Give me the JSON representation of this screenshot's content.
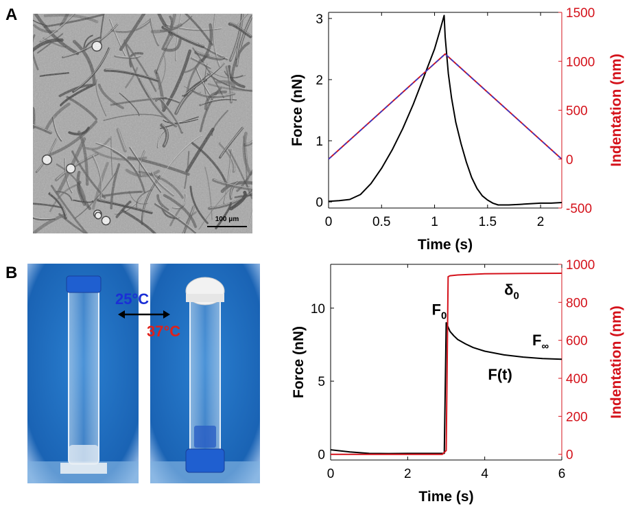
{
  "panel_a": {
    "letter": "A",
    "micrograph": {
      "scale_bar_text": "100 μm"
    }
  },
  "panel_b": {
    "letter": "B",
    "photo": {
      "left_temperature": "25°C",
      "right_temperature": "37°C",
      "left_temperature_color": "#1b2fd6",
      "right_temperature_color": "#e0201a",
      "background_color": "#1e6fc0",
      "cap_colors": {
        "left": "#1f5fd0",
        "right_top": "#f2f2f2",
        "right_bottom": "#1f5fd0"
      }
    }
  },
  "chart_data": [
    {
      "type": "line",
      "panel": "A",
      "xlabel": "Time (s)",
      "ylabel": "Force (nN)",
      "y2label": "Indentation (nm)",
      "xlim": [
        0,
        2.2
      ],
      "ylim": [
        -0.1,
        3.1
      ],
      "y2lim": [
        -500,
        1500
      ],
      "xticks": [
        0,
        0.5,
        1,
        1.5,
        2
      ],
      "xtick_labels": [
        "0",
        "0.5",
        "1",
        "1.5",
        "2"
      ],
      "yticks": [
        0,
        1,
        2,
        3
      ],
      "ytick_labels": [
        "0",
        "1",
        "2",
        "3"
      ],
      "y2ticks": [
        -500,
        0,
        500,
        1000,
        1500
      ],
      "y2tick_labels": [
        "-500",
        "0",
        "500",
        "1000",
        "1500"
      ],
      "left_axis_color": "#000000",
      "right_axis_color": "#d4111a",
      "series": [
        {
          "axis": "left",
          "color": "#000000",
          "x": [
            0,
            0.1,
            0.2,
            0.3,
            0.4,
            0.5,
            0.6,
            0.7,
            0.8,
            0.9,
            1.0,
            1.05,
            1.09,
            1.1,
            1.13,
            1.16,
            1.2,
            1.25,
            1.3,
            1.35,
            1.4,
            1.45,
            1.5,
            1.55,
            1.6,
            1.7,
            1.8,
            1.9,
            2.0,
            2.1,
            2.2
          ],
          "values": [
            0.01,
            0.02,
            0.04,
            0.12,
            0.3,
            0.55,
            0.85,
            1.2,
            1.6,
            2.05,
            2.5,
            2.8,
            3.05,
            2.7,
            2.1,
            1.7,
            1.3,
            0.95,
            0.65,
            0.4,
            0.22,
            0.1,
            0.03,
            -0.02,
            -0.05,
            -0.05,
            -0.04,
            -0.03,
            -0.02,
            -0.02,
            -0.01
          ]
        },
        {
          "axis": "right",
          "color": "#d4111a",
          "x": [
            0,
            1.1,
            2.2
          ],
          "values": [
            0,
            1075,
            0
          ]
        },
        {
          "axis": "right",
          "color": "#2a3bd4",
          "dashed": true,
          "x": [
            0,
            1.1,
            2.2
          ],
          "values": [
            0,
            1075,
            0
          ]
        }
      ]
    },
    {
      "type": "line",
      "panel": "B",
      "xlabel": "Time (s)",
      "ylabel": "Force (nN)",
      "y2label": "Indentation (nm)",
      "xlim": [
        0,
        6
      ],
      "ylim": [
        -0.4,
        13
      ],
      "y2lim": [
        -30,
        1000
      ],
      "xticks": [
        0,
        2,
        4,
        6
      ],
      "xtick_labels": [
        "0",
        "2",
        "4",
        "6"
      ],
      "yticks": [
        0,
        5,
        10
      ],
      "ytick_labels": [
        "0",
        "5",
        "10"
      ],
      "y2ticks": [
        0,
        200,
        400,
        600,
        800,
        1000
      ],
      "y2tick_labels": [
        "0",
        "200",
        "400",
        "600",
        "800",
        "1000"
      ],
      "left_axis_color": "#000000",
      "right_axis_color": "#d4111a",
      "series": [
        {
          "axis": "left",
          "color": "#000000",
          "x": [
            0,
            0.5,
            1,
            1.5,
            2,
            2.5,
            2.95,
            3.0,
            3.02,
            3.05,
            3.1,
            3.2,
            3.3,
            3.5,
            3.7,
            4.0,
            4.5,
            5.0,
            5.5,
            6.0
          ],
          "values": [
            0.3,
            0.15,
            0.05,
            0.04,
            0.05,
            0.05,
            0.05,
            9.0,
            8.9,
            8.7,
            8.4,
            8.1,
            7.85,
            7.55,
            7.3,
            7.05,
            6.8,
            6.65,
            6.55,
            6.5
          ]
        },
        {
          "axis": "right",
          "color": "#d4111a",
          "x": [
            0,
            2.9,
            3.0,
            3.05,
            3.1,
            3.3,
            3.6,
            4.0,
            5.0,
            6.0
          ],
          "values": [
            0,
            0,
            20,
            935,
            940,
            944,
            947,
            950,
            952,
            953
          ]
        }
      ],
      "annotations": [
        {
          "text": "F",
          "sub": "0",
          "x": 2.82,
          "y": 9.55,
          "color": "#000000"
        },
        {
          "text": "F",
          "sub": "∞",
          "x": 5.45,
          "y": 7.45,
          "color": "#000000"
        },
        {
          "text": "F(t)",
          "x": 4.4,
          "y": 5.1,
          "color": "#000000"
        },
        {
          "text": "δ",
          "sub": "0",
          "x": 4.7,
          "y": 840,
          "axis": "right",
          "color": "#000000"
        }
      ]
    }
  ]
}
